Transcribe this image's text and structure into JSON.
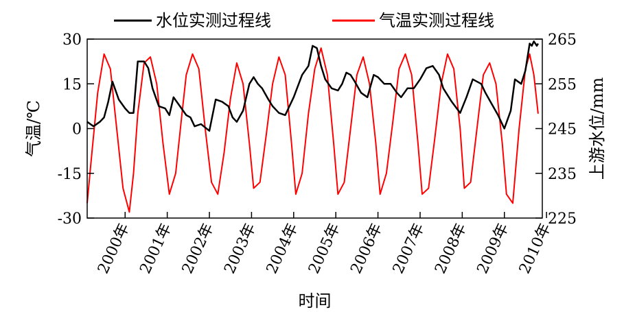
{
  "chart_data": {
    "type": "line",
    "title": "",
    "xlabel": "时间",
    "ylabel_left": "气温/℃",
    "ylabel_right": "上游水位/mm",
    "x_ticks": [
      "2000年",
      "2001年",
      "2002年",
      "2003年",
      "2004年",
      "2005年",
      "2006年",
      "2007年",
      "2008年",
      "2009年",
      "2010年"
    ],
    "x_range": [
      1999.6,
      2010.4
    ],
    "y_left": {
      "ticks": [
        "30",
        "15",
        "0",
        "-15",
        "-30"
      ],
      "range": [
        -30,
        30
      ]
    },
    "y_right": {
      "ticks": [
        "265",
        "255",
        "245",
        "235",
        "225"
      ],
      "range": [
        225,
        265
      ]
    },
    "legend": {
      "placement": "top"
    },
    "series": [
      {
        "name": "水位实测过程线",
        "color": "#000000",
        "axis": "right",
        "x": [
          1999.6,
          1999.75,
          1999.9,
          2000.0,
          2000.1,
          2000.2,
          2000.35,
          2000.5,
          2000.6,
          2000.7,
          2000.8,
          2000.9,
          2000.95,
          2001.05,
          2001.15,
          2001.3,
          2001.45,
          2001.55,
          2001.65,
          2001.8,
          2001.95,
          2002.05,
          2002.15,
          2002.3,
          2002.5,
          2002.65,
          2002.8,
          2002.95,
          2003.05,
          2003.15,
          2003.3,
          2003.45,
          2003.55,
          2003.65,
          2003.75,
          2003.9,
          2004.0,
          2004.15,
          2004.3,
          2004.5,
          2004.7,
          2004.85,
          2004.95,
          2005.05,
          2005.15,
          2005.25,
          2005.4,
          2005.55,
          2005.65,
          2005.75,
          2005.85,
          2005.95,
          2006.1,
          2006.25,
          2006.4,
          2006.5,
          2006.65,
          2006.8,
          2006.95,
          2007.05,
          2007.2,
          2007.35,
          2007.5,
          2007.65,
          2007.8,
          2007.95,
          2008.05,
          2008.25,
          2008.45,
          2008.6,
          2008.75,
          2008.95,
          2009.05,
          2009.2,
          2009.35,
          2009.5,
          2009.65,
          2009.75,
          2009.9,
          2010.0,
          2010.1,
          2010.15,
          2010.2,
          2010.27,
          2010.3
        ],
        "values": [
          246.5,
          245.5,
          246.5,
          247.5,
          251.0,
          255.5,
          251.5,
          249.5,
          248.5,
          248.5,
          260.0,
          260.0,
          260.0,
          258.5,
          254.0,
          250.0,
          249.5,
          248.0,
          252.0,
          250.0,
          248.0,
          247.5,
          245.5,
          246.0,
          244.5,
          251.5,
          251.0,
          250.0,
          247.5,
          246.5,
          249.0,
          255.0,
          256.5,
          255.0,
          254.0,
          251.5,
          250.0,
          248.5,
          248.0,
          252.0,
          257.0,
          259.0,
          263.5,
          263.0,
          259.0,
          256.0,
          254.0,
          253.5,
          255.0,
          257.5,
          257.0,
          255.5,
          253.0,
          252.0,
          257.0,
          256.5,
          255.0,
          255.0,
          253.0,
          252.0,
          254.0,
          254.0,
          256.0,
          258.5,
          259.0,
          257.0,
          254.0,
          251.0,
          248.5,
          252.0,
          256.0,
          255.0,
          253.0,
          250.5,
          248.0,
          245.0,
          249.0,
          256.0,
          255.0,
          258.0,
          264.0,
          263.5,
          264.5,
          263.5,
          264.0
        ]
      },
      {
        "name": "气温实测过程线",
        "color": "#ff0000",
        "axis": "left",
        "x": [
          1999.6,
          1999.7,
          1999.85,
          2000.0,
          2000.15,
          2000.3,
          2000.45,
          2000.6,
          2000.7,
          2000.8,
          2000.95,
          2001.1,
          2001.25,
          2001.4,
          2001.55,
          2001.7,
          2001.85,
          2001.95,
          2002.1,
          2002.25,
          2002.4,
          2002.55,
          2002.7,
          2002.85,
          2003.0,
          2003.15,
          2003.3,
          2003.45,
          2003.55,
          2003.7,
          2003.85,
          2004.0,
          2004.15,
          2004.3,
          2004.45,
          2004.55,
          2004.7,
          2004.85,
          2005.0,
          2005.15,
          2005.3,
          2005.45,
          2005.55,
          2005.7,
          2005.85,
          2006.0,
          2006.15,
          2006.3,
          2006.45,
          2006.55,
          2006.7,
          2006.85,
          2007.0,
          2007.15,
          2007.3,
          2007.45,
          2007.55,
          2007.7,
          2007.85,
          2008.0,
          2008.15,
          2008.3,
          2008.45,
          2008.55,
          2008.7,
          2008.85,
          2009.0,
          2009.15,
          2009.3,
          2009.45,
          2009.55,
          2009.7,
          2009.85,
          2010.0,
          2010.1,
          2010.2,
          2010.3
        ],
        "values": [
          -25.0,
          -10.0,
          12.0,
          25.0,
          20.0,
          0.0,
          -20.0,
          -28.0,
          -15.0,
          5.0,
          22.0,
          24.0,
          15.0,
          -5.0,
          -22.0,
          -15.0,
          5.0,
          18.0,
          25.0,
          20.0,
          0.0,
          -18.0,
          -22.0,
          -8.0,
          10.0,
          22.0,
          15.0,
          -5.0,
          -20.0,
          -18.0,
          -2.0,
          15.0,
          24.0,
          18.0,
          -5.0,
          -22.0,
          -15.0,
          5.0,
          20.0,
          27.0,
          18.0,
          -5.0,
          -22.0,
          -18.0,
          0.0,
          18.0,
          24.0,
          15.0,
          -5.0,
          -22.0,
          -15.0,
          2.0,
          20.0,
          25.0,
          18.0,
          -5.0,
          -22.0,
          -20.0,
          -3.0,
          15.0,
          25.0,
          20.0,
          0.0,
          -20.0,
          -18.0,
          0.0,
          18.0,
          22.0,
          15.0,
          -5.0,
          -22.0,
          -25.0,
          0.0,
          20.0,
          25.0,
          18.0,
          5.0
        ]
      }
    ]
  }
}
